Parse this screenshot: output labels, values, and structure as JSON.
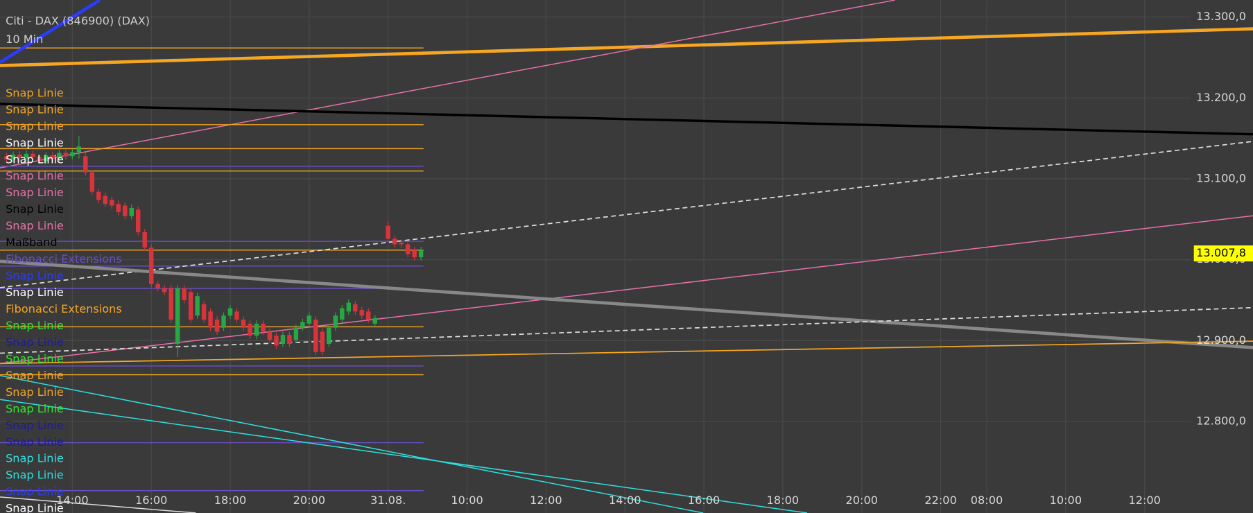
{
  "chart_data": {
    "type": "candlestick",
    "title": "Citi - DAX (846900) (DAX)",
    "subtitle": "10 Min",
    "xlim": [
      -11,
      170
    ],
    "xticks": [
      {
        "value": 0,
        "label": "14:00"
      },
      {
        "value": 12,
        "label": "16:00"
      },
      {
        "value": 24,
        "label": "18:00"
      },
      {
        "value": 36,
        "label": "20:00"
      },
      {
        "value": 48,
        "label": "31.08."
      },
      {
        "value": 60,
        "label": "10:00"
      },
      {
        "value": 72,
        "label": "12:00"
      },
      {
        "value": 84,
        "label": "14:00"
      },
      {
        "value": 96,
        "label": "16:00"
      },
      {
        "value": 108,
        "label": "18:00"
      },
      {
        "value": 120,
        "label": "20:00"
      },
      {
        "value": 132,
        "label": "22:00"
      },
      {
        "value": 139,
        "label": "08:00"
      },
      {
        "value": 151,
        "label": "10:00"
      },
      {
        "value": 163,
        "label": "12:00"
      }
    ],
    "ylim": [
      12687,
      13321
    ],
    "yticks": [
      {
        "value": 13300,
        "label": "13.300,0"
      },
      {
        "value": 13200,
        "label": "13.200,0"
      },
      {
        "value": 13100,
        "label": "13.100,0"
      },
      {
        "value": 13000,
        "label": "13.000,0"
      },
      {
        "value": 12900,
        "label": "12.900,0"
      },
      {
        "value": 12800,
        "label": "12.800,0"
      }
    ],
    "grid": true,
    "last_price": {
      "value": 13007.8,
      "label": "13.007,8"
    },
    "up_color": "#27a844",
    "down_color": "#d9343c",
    "x": [
      -10,
      -9,
      -8,
      -7,
      -6,
      -5,
      -4,
      -3,
      -2,
      -1,
      0,
      1,
      2,
      3,
      4,
      5,
      6,
      7,
      8,
      9,
      10,
      11,
      12,
      13,
      14,
      15,
      16,
      17,
      18,
      19,
      20,
      21,
      22,
      23,
      24,
      25,
      26,
      27,
      28,
      29,
      30,
      31,
      32,
      33,
      34,
      35,
      36,
      37,
      38,
      39,
      40,
      41,
      42,
      43,
      44,
      45,
      46,
      48,
      49,
      50,
      51,
      52,
      53
    ],
    "open": [
      13128,
      13124,
      13130,
      13126,
      13131,
      13127,
      13122,
      13129,
      13125,
      13132,
      13128,
      13133,
      13128,
      13108,
      13084,
      13079,
      13074,
      13069,
      13067,
      13054,
      13062,
      13034,
      13015,
      12970,
      12965,
      12965,
      12896,
      12965,
      12960,
      12931,
      12945,
      12936,
      12926,
      12916,
      12931,
      12936,
      12926,
      12921,
      12906,
      12921,
      12911,
      12906,
      12896,
      12907,
      12901,
      12916,
      12921,
      12926,
      12911,
      12896,
      12916,
      12926,
      12936,
      12945,
      12938,
      12936,
      12921,
      13042,
      13026,
      13021,
      13019,
      13012,
      13003
    ],
    "high": [
      13132,
      13134,
      13134,
      13135,
      13135,
      13131,
      13133,
      13133,
      13136,
      13136,
      13137,
      13153,
      13133,
      13110,
      13088,
      13083,
      13078,
      13073,
      13071,
      13068,
      13066,
      13038,
      13019,
      12974,
      12969,
      12969,
      12969,
      12969,
      12964,
      12959,
      12949,
      12940,
      12930,
      12935,
      12944,
      12940,
      12930,
      12925,
      12925,
      12925,
      12915,
      12910,
      12911,
      12911,
      12920,
      12927,
      12935,
      12930,
      12915,
      12920,
      12935,
      12944,
      12951,
      12949,
      12942,
      12940,
      12932,
      13048,
      13030,
      13025,
      13023,
      13016,
      13016
    ],
    "low": [
      13120,
      13120,
      13122,
      13122,
      13123,
      13118,
      13118,
      13121,
      13121,
      13124,
      13124,
      13125,
      13104,
      13080,
      13070,
      13065,
      13063,
      13055,
      13050,
      13050,
      13030,
      13011,
      12966,
      12961,
      12956,
      12922,
      12880,
      12946,
      12922,
      12927,
      12922,
      12912,
      12907,
      12912,
      12927,
      12922,
      12912,
      12902,
      12902,
      12907,
      12897,
      12890,
      12892,
      12892,
      12897,
      12912,
      12917,
      12882,
      12882,
      12892,
      12912,
      12922,
      12932,
      12932,
      12927,
      12922,
      12917,
      13024,
      13015,
      13015,
      13003,
      12999,
      12999
    ],
    "close": [
      13124,
      13130,
      13126,
      13131,
      13127,
      13122,
      13129,
      13125,
      13132,
      13128,
      13133,
      13140,
      13108,
      13084,
      13074,
      13069,
      13067,
      13059,
      13054,
      13064,
      13034,
      13015,
      12970,
      12965,
      12960,
      12926,
      12965,
      12950,
      12926,
      12955,
      12926,
      12916,
      12911,
      12931,
      12940,
      12926,
      12916,
      12906,
      12921,
      12911,
      12901,
      12894,
      12907,
      12896,
      12916,
      12923,
      12931,
      12886,
      12886,
      12916,
      12931,
      12940,
      12947,
      12936,
      12931,
      12926,
      12928,
      13026,
      13019,
      13019,
      13007,
      13003,
      13012
    ],
    "drawings": [
      {
        "name": "Snap Linie",
        "color": "#f5a623"
      },
      {
        "name": "Snap Linie",
        "color": "#f5a623"
      },
      {
        "name": "Snap Linie",
        "color": "#f5a623"
      },
      {
        "name": "Snap Linie",
        "color": "#ffffff"
      },
      {
        "name": "Snap Linie",
        "color": "#ffffff"
      },
      {
        "name": "Snap Linie",
        "color": "#e870a8"
      },
      {
        "name": "Snap Linie",
        "color": "#e870a8"
      },
      {
        "name": "Snap Linie",
        "color": "#000000"
      },
      {
        "name": "Snap Linie",
        "color": "#e870a8"
      },
      {
        "name": "Maßband",
        "color": "#000000"
      },
      {
        "name": "Fibonacci Extensions",
        "color": "#6a4fc8"
      },
      {
        "name": "Snap Linie",
        "color": "#2a3cff"
      },
      {
        "name": "Snap Linie",
        "color": "#ffffff"
      },
      {
        "name": "Fibonacci Extensions",
        "color": "#f5a623"
      },
      {
        "name": "Snap Linie",
        "color": "#2ee82e"
      },
      {
        "name": "Snap Linie",
        "color": "#1c1c9a"
      },
      {
        "name": "Snap Linie",
        "color": "#2ee82e"
      },
      {
        "name": "Snap Linie",
        "color": "#f5a623"
      },
      {
        "name": "Snap Linie",
        "color": "#f5a623"
      },
      {
        "name": "Snap Linie",
        "color": "#2ee82e"
      },
      {
        "name": "Snap Linie",
        "color": "#1c1c9a"
      },
      {
        "name": "Snap Linie",
        "color": "#1c1c9a"
      },
      {
        "name": "Snap Linie",
        "color": "#2ee0e0"
      },
      {
        "name": "Snap Linie",
        "color": "#2ee0e0"
      },
      {
        "name": "Snap Linie",
        "color": "#2a3cff"
      },
      {
        "name": "Snap Linie",
        "color": "#ffffff"
      }
    ]
  }
}
